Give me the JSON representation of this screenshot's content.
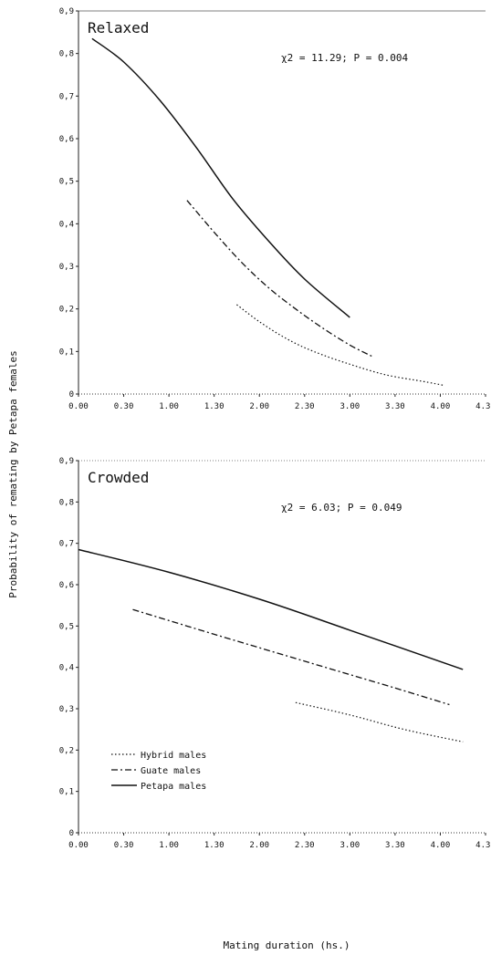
{
  "y_axis_label": "Probability of remating by Petapa females",
  "x_axis_label": "Mating duration (hs.)",
  "legend": [
    {
      "label": "Hybrid males",
      "dash": "dotted"
    },
    {
      "label": "Guate males",
      "dash": "dashdot"
    },
    {
      "label": "Petapa males",
      "dash": "solid"
    }
  ],
  "chart_data": [
    {
      "type": "line",
      "panel_label": "Relaxed",
      "stat_text": "χ2 = 11.29; P = 0.004",
      "xlim": [
        0,
        4.5
      ],
      "ylim": [
        0,
        0.9
      ],
      "x_tick_labels": [
        "0.00",
        "0.30",
        "1.00",
        "1.30",
        "2.00",
        "2.30",
        "3.00",
        "3.30",
        "4.00",
        "4.30"
      ],
      "y_tick_labels": [
        "0",
        "0,1",
        "0,2",
        "0,3",
        "0,4",
        "0,5",
        "0,6",
        "0,7",
        "0,8",
        "0,9"
      ],
      "series": [
        {
          "name": "Petapa males",
          "dash": "solid",
          "x": [
            0.15,
            0.5,
            0.9,
            1.3,
            1.7,
            2.1,
            2.5,
            3.0
          ],
          "y": [
            0.835,
            0.78,
            0.69,
            0.58,
            0.46,
            0.36,
            0.27,
            0.18
          ]
        },
        {
          "name": "Guate males",
          "dash": "dashdot",
          "x": [
            1.2,
            1.5,
            1.8,
            2.1,
            2.4,
            2.7,
            3.0,
            3.25
          ],
          "y": [
            0.455,
            0.38,
            0.31,
            0.25,
            0.2,
            0.155,
            0.115,
            0.088
          ]
        },
        {
          "name": "Hybrid males",
          "dash": "dotted",
          "x": [
            1.75,
            2.0,
            2.3,
            2.6,
            3.0,
            3.4,
            3.8,
            4.05
          ],
          "y": [
            0.21,
            0.17,
            0.13,
            0.1,
            0.07,
            0.045,
            0.03,
            0.02
          ]
        }
      ]
    },
    {
      "type": "line",
      "panel_label": "Crowded",
      "stat_text": "χ2 = 6.03; P = 0.049",
      "xlim": [
        0,
        4.5
      ],
      "ylim": [
        0,
        0.9
      ],
      "x_tick_labels": [
        "0.00",
        "0.30",
        "1.00",
        "1.30",
        "2.00",
        "2.30",
        "3.00",
        "3.30",
        "4.00",
        "4.30"
      ],
      "y_tick_labels": [
        "0",
        "0,1",
        "0,2",
        "0,3",
        "0,4",
        "0,5",
        "0,6",
        "0,7",
        "0,8",
        "0,9"
      ],
      "series": [
        {
          "name": "Petapa males",
          "dash": "solid",
          "x": [
            0.0,
            1.0,
            2.0,
            3.0,
            4.25
          ],
          "y": [
            0.685,
            0.63,
            0.565,
            0.49,
            0.395
          ]
        },
        {
          "name": "Guate males",
          "dash": "dashdot",
          "x": [
            0.6,
            1.5,
            2.5,
            3.5,
            4.1
          ],
          "y": [
            0.54,
            0.48,
            0.415,
            0.35,
            0.31
          ]
        },
        {
          "name": "Hybrid males",
          "dash": "dotted",
          "x": [
            2.4,
            3.0,
            3.6,
            4.25
          ],
          "y": [
            0.315,
            0.285,
            0.25,
            0.22
          ]
        }
      ]
    }
  ]
}
